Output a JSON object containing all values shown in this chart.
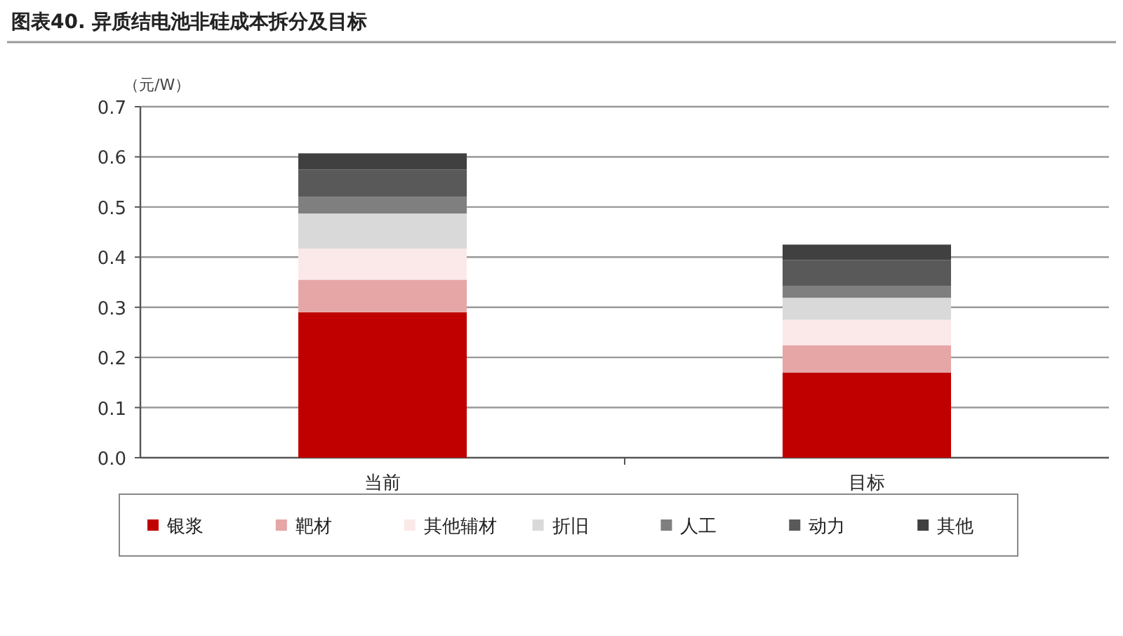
{
  "chart_data": {
    "type": "bar",
    "title": "图表40. 异质结电池非硅成本拆分及目标",
    "ylabel": "（元/W）",
    "categories": [
      "当前",
      "目标"
    ],
    "stacked": true,
    "grid": "y",
    "legend": "bottom",
    "ylim": [
      0,
      0.7
    ],
    "yticks": [
      {
        "value": 0,
        "label": "0.0"
      },
      0.1,
      0.2,
      0.3,
      0.4,
      0.5,
      0.6,
      0.7
    ],
    "series": [
      {
        "name": "银浆",
        "color": "#c00000",
        "values": [
          0.29,
          0.17
        ]
      },
      {
        "name": "靶材",
        "color": "#e6a6a6",
        "values": [
          0.065,
          0.054
        ]
      },
      {
        "name": "其他辅材",
        "color": "#fbe9e9",
        "values": [
          0.062,
          0.051
        ]
      },
      {
        "name": "折旧",
        "color": "#d9d9d9",
        "values": [
          0.07,
          0.044
        ]
      },
      {
        "name": "人工",
        "color": "#7f7f7f",
        "values": [
          0.033,
          0.024
        ]
      },
      {
        "name": "动力",
        "color": "#595959",
        "values": [
          0.055,
          0.051
        ]
      },
      {
        "name": "其他",
        "color": "#404040",
        "values": [
          0.032,
          0.031
        ]
      }
    ]
  }
}
